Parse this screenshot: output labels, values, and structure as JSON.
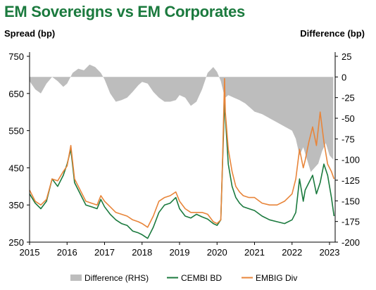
{
  "title": "EM Sovereigns vs EM Corporates",
  "colors": {
    "title": "#1b7a3e",
    "difference": "#bdbdbd",
    "cembi": "#1b7a3e",
    "embig": "#e8853a"
  },
  "chart_data": {
    "type": "line",
    "title": "EM Sovereigns vs EM Corporates",
    "ylabel": "Spread (bp)",
    "ylabel_right": "Difference (bp)",
    "xlabel": "",
    "xlim": [
      2015,
      2023.15
    ],
    "ylim": [
      250,
      750
    ],
    "ylim_right": [
      -200,
      25
    ],
    "x_ticks": [
      "2015",
      "2016",
      "2017",
      "2018",
      "2019",
      "2020",
      "2021",
      "2022",
      "2023"
    ],
    "y_ticks_left": [
      "250",
      "350",
      "450",
      "550",
      "650",
      "750"
    ],
    "y_ticks_right": [
      "-200",
      "-175",
      "-150",
      "-125",
      "-100",
      "-75",
      "-50",
      "-25",
      "0",
      "25"
    ],
    "grid": false,
    "legend_position": "bottom",
    "series": [
      {
        "name": "Difference (RHS)",
        "type": "area",
        "axis": "right",
        "x": [
          2015.0,
          2015.15,
          2015.3,
          2015.45,
          2015.6,
          2015.75,
          2015.9,
          2016.0,
          2016.15,
          2016.3,
          2016.45,
          2016.6,
          2016.75,
          2016.9,
          2017.0,
          2017.15,
          2017.3,
          2017.45,
          2017.6,
          2017.75,
          2017.9,
          2018.0,
          2018.15,
          2018.3,
          2018.45,
          2018.6,
          2018.75,
          2018.9,
          2019.0,
          2019.15,
          2019.3,
          2019.45,
          2019.6,
          2019.75,
          2019.9,
          2020.0,
          2020.1,
          2020.18,
          2020.22,
          2020.3,
          2020.45,
          2020.6,
          2020.75,
          2020.9,
          2021.0,
          2021.2,
          2021.4,
          2021.6,
          2021.8,
          2022.0,
          2022.1,
          2022.2,
          2022.3,
          2022.4,
          2022.5,
          2022.6,
          2022.7,
          2022.8,
          2022.9,
          2023.0,
          2023.1
        ],
        "y": [
          -5,
          -15,
          -20,
          -8,
          0,
          -5,
          -12,
          -8,
          5,
          10,
          8,
          15,
          12,
          5,
          -3,
          -20,
          -30,
          -28,
          -25,
          -18,
          -10,
          -6,
          -8,
          -18,
          -25,
          -30,
          -30,
          -28,
          -22,
          -25,
          -35,
          -30,
          -15,
          5,
          12,
          6,
          -5,
          -20,
          -25,
          -22,
          -25,
          -28,
          -32,
          -38,
          -42,
          -45,
          -50,
          -55,
          -60,
          -65,
          -75,
          -95,
          -85,
          -100,
          -115,
          -110,
          -105,
          -90,
          -80,
          -95,
          -100
        ]
      },
      {
        "name": "CEMBI BD",
        "type": "line",
        "axis": "left",
        "x": [
          2015.0,
          2015.15,
          2015.3,
          2015.45,
          2015.6,
          2015.75,
          2015.9,
          2016.0,
          2016.1,
          2016.2,
          2016.35,
          2016.5,
          2016.65,
          2016.8,
          2016.9,
          2017.0,
          2017.15,
          2017.3,
          2017.45,
          2017.6,
          2017.75,
          2017.9,
          2018.0,
          2018.15,
          2018.3,
          2018.45,
          2018.6,
          2018.75,
          2018.9,
          2019.0,
          2019.15,
          2019.3,
          2019.45,
          2019.6,
          2019.75,
          2019.9,
          2020.0,
          2020.1,
          2020.15,
          2020.2,
          2020.22,
          2020.3,
          2020.4,
          2020.5,
          2020.6,
          2020.7,
          2020.85,
          2021.0,
          2021.2,
          2021.4,
          2021.6,
          2021.8,
          2022.0,
          2022.1,
          2022.2,
          2022.3,
          2022.35,
          2022.45,
          2022.55,
          2022.65,
          2022.75,
          2022.85,
          2022.95,
          2023.05,
          2023.12
        ],
        "y": [
          380,
          355,
          340,
          360,
          420,
          400,
          430,
          460,
          500,
          410,
          380,
          350,
          345,
          340,
          365,
          345,
          325,
          310,
          300,
          295,
          280,
          275,
          270,
          260,
          290,
          330,
          350,
          355,
          370,
          340,
          320,
          315,
          325,
          318,
          312,
          300,
          295,
          310,
          470,
          630,
          590,
          460,
          400,
          370,
          355,
          345,
          340,
          335,
          320,
          310,
          305,
          300,
          310,
          330,
          420,
          360,
          390,
          410,
          430,
          380,
          410,
          460,
          430,
          370,
          320
        ]
      },
      {
        "name": "EMBIG Div",
        "type": "line",
        "axis": "left",
        "x": [
          2015.0,
          2015.15,
          2015.3,
          2015.45,
          2015.6,
          2015.75,
          2015.9,
          2016.0,
          2016.1,
          2016.2,
          2016.35,
          2016.5,
          2016.65,
          2016.8,
          2016.9,
          2017.0,
          2017.15,
          2017.3,
          2017.45,
          2017.6,
          2017.75,
          2017.9,
          2018.0,
          2018.15,
          2018.3,
          2018.45,
          2018.6,
          2018.75,
          2018.9,
          2019.0,
          2019.15,
          2019.3,
          2019.45,
          2019.6,
          2019.75,
          2019.9,
          2020.0,
          2020.1,
          2020.15,
          2020.2,
          2020.22,
          2020.3,
          2020.4,
          2020.5,
          2020.6,
          2020.7,
          2020.85,
          2021.0,
          2021.2,
          2021.4,
          2021.6,
          2021.8,
          2022.0,
          2022.1,
          2022.2,
          2022.3,
          2022.35,
          2022.45,
          2022.55,
          2022.65,
          2022.75,
          2022.85,
          2022.95,
          2023.05,
          2023.12
        ],
        "y": [
          390,
          360,
          350,
          365,
          420,
          415,
          440,
          455,
          510,
          420,
          390,
          360,
          355,
          350,
          375,
          360,
          345,
          330,
          325,
          320,
          310,
          305,
          300,
          290,
          320,
          360,
          370,
          375,
          385,
          360,
          340,
          330,
          330,
          330,
          325,
          305,
          300,
          310,
          480,
          690,
          600,
          500,
          440,
          400,
          385,
          375,
          370,
          370,
          355,
          350,
          350,
          360,
          380,
          420,
          500,
          450,
          470,
          520,
          560,
          510,
          600,
          520,
          460,
          440,
          420
        ]
      }
    ]
  }
}
